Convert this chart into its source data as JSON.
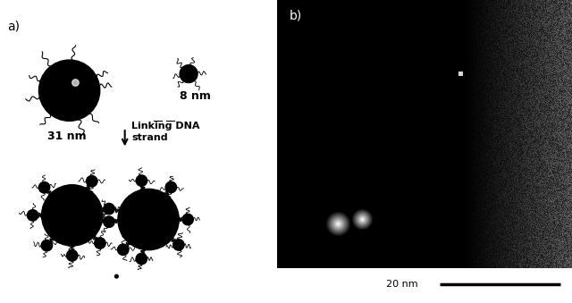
{
  "fig_width": 6.4,
  "fig_height": 3.39,
  "dpi": 100,
  "background_color": "#ffffff",
  "panel_a_label": "a)",
  "panel_b_label": "b)",
  "small_particle_label": "8 nm",
  "large_particle_label": "31 nm",
  "arrow_text": "Linking DNA\nstrand",
  "scalebar_label": "20 nm",
  "particle_color": "#000000"
}
